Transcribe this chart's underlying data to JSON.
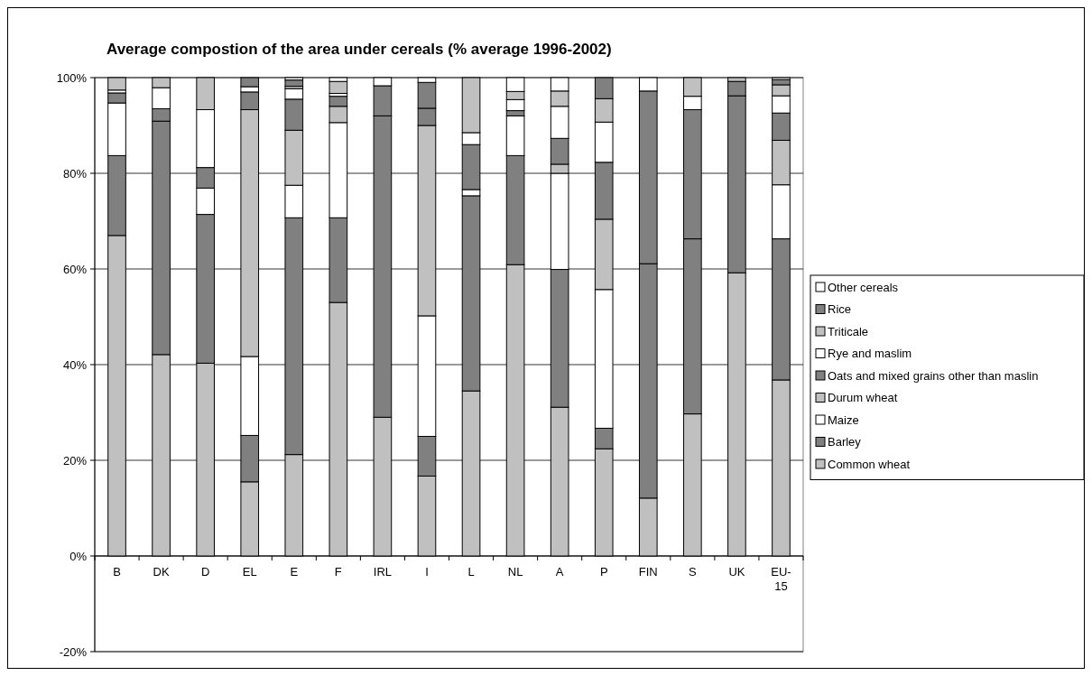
{
  "chart_data": {
    "type": "bar",
    "stacked": true,
    "title": "Average compostion of the area under cereals (% average 1996-2002)",
    "categories": [
      "B",
      "DK",
      "D",
      "EL",
      "E",
      "F",
      "IRL",
      "I",
      "L",
      "NL",
      "A",
      "P",
      "FIN",
      "S",
      "UK",
      "EU-15"
    ],
    "series": [
      {
        "name": "Common wheat",
        "color": "#c0c0c0",
        "values": [
          67,
          42.1,
          40.3,
          15.5,
          21.2,
          53,
          29,
          16.7,
          34.5,
          60.9,
          31.1,
          22.4,
          12.1,
          29.7,
          59.2,
          36.8
        ]
      },
      {
        "name": "Barley",
        "color": "#808080",
        "values": [
          16.7,
          48.8,
          31.1,
          9.7,
          49.5,
          17.7,
          63,
          8.3,
          40.8,
          22.8,
          28.8,
          4.3,
          49,
          36.6,
          37,
          29.5
        ]
      },
      {
        "name": "Maize",
        "color": "#ffffff",
        "values": [
          11,
          0,
          5.5,
          16.5,
          6.8,
          19.9,
          0,
          25.2,
          1.3,
          8.3,
          20.1,
          29,
          0,
          0,
          0,
          11.3
        ]
      },
      {
        "name": "Durum wheat",
        "color": "#c0c0c0",
        "values": [
          0,
          0,
          0,
          51.6,
          11.5,
          3.4,
          0,
          39.8,
          0,
          0,
          1.9,
          14.7,
          0,
          0,
          0,
          9.3
        ]
      },
      {
        "name": "Oats and mixed grains other than maslin",
        "color": "#808080",
        "values": [
          2.1,
          2.6,
          4.3,
          3.7,
          6.5,
          2.1,
          6.3,
          3.6,
          9.4,
          1.1,
          5.4,
          11.9,
          36.1,
          27,
          3,
          5.7
        ]
      },
      {
        "name": "Rye and maslim",
        "color": "#ffffff",
        "values": [
          0.6,
          4.4,
          12.1,
          1.1,
          2.2,
          0.6,
          0,
          0,
          2.5,
          2.3,
          6.7,
          8.4,
          2.8,
          2.8,
          0,
          3.6
        ]
      },
      {
        "name": "Triticale",
        "color": "#c0c0c0",
        "values": [
          2.6,
          2.1,
          6.7,
          0,
          0.5,
          2.5,
          0,
          0,
          11.5,
          1.7,
          3.2,
          4.9,
          0,
          3.9,
          0.8,
          2.3
        ]
      },
      {
        "name": "Rice",
        "color": "#808080",
        "values": [
          0,
          0,
          0,
          1.9,
          1.3,
          0,
          0,
          5.4,
          0,
          0,
          0,
          4.4,
          0,
          0,
          0,
          1.1
        ]
      },
      {
        "name": "Other cereals",
        "color": "#ffffff",
        "values": [
          0,
          0,
          0,
          0,
          0.5,
          0.8,
          1.7,
          1,
          0,
          2.9,
          2.8,
          0,
          0,
          0,
          0,
          0.4
        ]
      }
    ],
    "ylim": [
      -20,
      100
    ],
    "yticks": [
      {
        "value": -20,
        "label": "-20%"
      },
      {
        "value": 0,
        "label": "0%"
      },
      {
        "value": 20,
        "label": "20%"
      },
      {
        "value": 40,
        "label": "40%"
      },
      {
        "value": 60,
        "label": "60%"
      },
      {
        "value": 80,
        "label": "80%"
      },
      {
        "value": 100,
        "label": "100%"
      }
    ],
    "grid": "y",
    "legend": "right"
  }
}
